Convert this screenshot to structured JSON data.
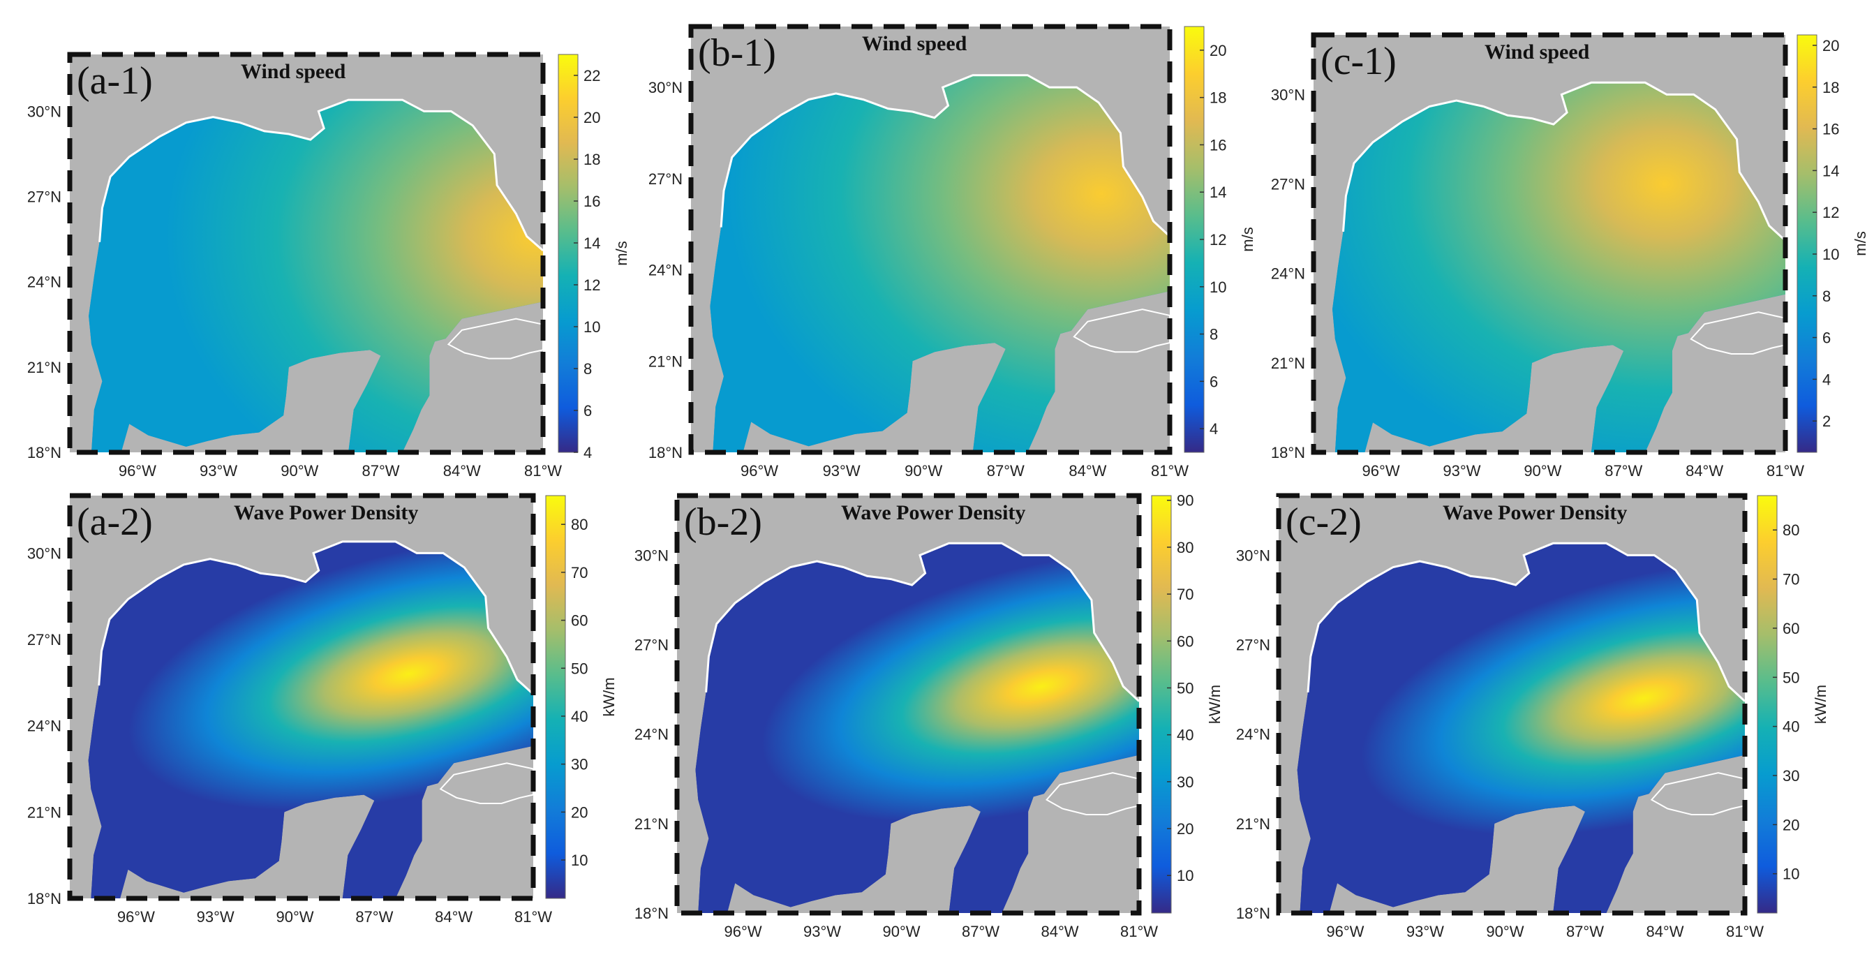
{
  "figure": {
    "panels": [
      {
        "id": "a-1",
        "label": "(a-1)",
        "title": "Wind speed",
        "unit": "m/s",
        "variable": "wind",
        "colorbar": {
          "min": 4,
          "max": 23,
          "ticks": [
            4,
            6,
            8,
            10,
            12,
            14,
            16,
            18,
            20,
            22
          ]
        },
        "hot": {
          "lon": -81.3,
          "lat": 25.6
        }
      },
      {
        "id": "b-1",
        "label": "(b-1)",
        "title": "Wind speed",
        "unit": "m/s",
        "variable": "wind",
        "colorbar": {
          "min": 3,
          "max": 21,
          "ticks": [
            4,
            6,
            8,
            10,
            12,
            14,
            16,
            18,
            20
          ]
        },
        "hot": {
          "lon": -83.5,
          "lat": 26.5
        }
      },
      {
        "id": "c-1",
        "label": "(c-1)",
        "title": "Wind speed",
        "unit": "m/s",
        "variable": "wind",
        "colorbar": {
          "min": 0.5,
          "max": 20.5,
          "ticks": [
            2,
            4,
            6,
            8,
            10,
            12,
            14,
            16,
            18,
            20
          ]
        },
        "hot": {
          "lon": -85.5,
          "lat": 27
        }
      },
      {
        "id": "a-2",
        "label": "(a-2)",
        "title": "Wave Power Density",
        "unit": "kW/m",
        "variable": "wave",
        "colorbar": {
          "min": 2,
          "max": 86,
          "ticks": [
            10,
            20,
            30,
            40,
            50,
            60,
            70,
            80
          ]
        },
        "hot": {
          "lon": -85.7,
          "lat": 25.8
        }
      },
      {
        "id": "b-2",
        "label": "(b-2)",
        "title": "Wave Power Density",
        "unit": "kW/m",
        "variable": "wave",
        "colorbar": {
          "min": 2,
          "max": 91,
          "ticks": [
            10,
            20,
            30,
            40,
            50,
            60,
            70,
            80,
            90
          ]
        },
        "hot": {
          "lon": -84.7,
          "lat": 25.6
        }
      },
      {
        "id": "c-2",
        "label": "(c-2)",
        "title": "Wave Power Density",
        "unit": "kW/m",
        "variable": "wave",
        "colorbar": {
          "min": 2,
          "max": 87,
          "ticks": [
            10,
            20,
            30,
            40,
            50,
            60,
            70,
            80
          ]
        },
        "hot": {
          "lon": -84.8,
          "lat": 25.2
        }
      }
    ],
    "lon_ticks": [
      {
        "v": -96,
        "t": "96°W"
      },
      {
        "v": -93,
        "t": "93°W"
      },
      {
        "v": -90,
        "t": "90°W"
      },
      {
        "v": -87,
        "t": "87°W"
      },
      {
        "v": -84,
        "t": "84°W"
      },
      {
        "v": -81,
        "t": "81°W"
      }
    ],
    "lat_ticks": [
      {
        "v": 18,
        "t": "18°N"
      },
      {
        "v": 21,
        "t": "21°N"
      },
      {
        "v": 24,
        "t": "24°N"
      },
      {
        "v": 27,
        "t": "27°N"
      },
      {
        "v": 30,
        "t": "30°N"
      }
    ],
    "colors": {
      "land": "#b4b4b4",
      "coast": "#ffffff",
      "frame": "#111111"
    }
  }
}
